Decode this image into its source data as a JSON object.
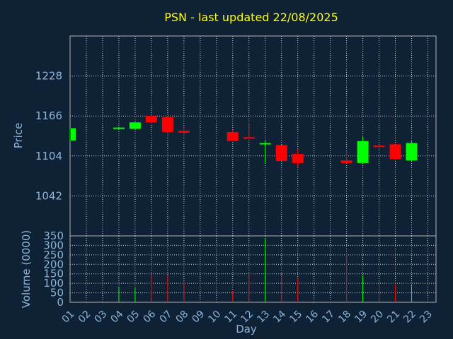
{
  "chart_data": {
    "type": "candlestick",
    "title": "PSN - last updated 22/08/2025",
    "xlabel": "Day",
    "price_ylabel": "Price",
    "volume_ylabel": "Volume (0000)",
    "x_ticks": [
      "01",
      "02",
      "03",
      "04",
      "05",
      "06",
      "07",
      "08",
      "09",
      "10",
      "11",
      "12",
      "13",
      "14",
      "15",
      "16",
      "17",
      "18",
      "19",
      "20",
      "21",
      "22",
      "23"
    ],
    "price_ticks": [
      1042,
      1104,
      1166,
      1228
    ],
    "price_ylim": [
      980,
      1290
    ],
    "volume_ticks": [
      0,
      50,
      100,
      150,
      200,
      250,
      300,
      350
    ],
    "volume_ylim": [
      0,
      350
    ],
    "grid": true,
    "colors": {
      "background": "#0f2135",
      "title": "#ffff00",
      "labels": "#8cb4d8",
      "up": "#00ff00",
      "down": "#ff0000",
      "axis": "#b4b4b4",
      "grid": "#cccccc"
    },
    "candles": [
      {
        "day": 1,
        "open": 1128,
        "high": 1147,
        "low": 1128,
        "close": 1147
      },
      {
        "day": 4,
        "open": 1147,
        "high": 1148,
        "low": 1145,
        "close": 1148
      },
      {
        "day": 5,
        "open": 1146,
        "high": 1157,
        "low": 1144,
        "close": 1156
      },
      {
        "day": 6,
        "open": 1166,
        "high": 1166,
        "low": 1154,
        "close": 1156
      },
      {
        "day": 7,
        "open": 1164,
        "high": 1164,
        "low": 1140,
        "close": 1141
      },
      {
        "day": 8,
        "open": 1143,
        "high": 1150,
        "low": 1138,
        "close": 1140
      },
      {
        "day": 11,
        "open": 1141,
        "high": 1144,
        "low": 1127,
        "close": 1127
      },
      {
        "day": 12,
        "open": 1133,
        "high": 1155,
        "low": 1132,
        "close": 1132
      },
      {
        "day": 13,
        "open": 1122,
        "high": 1128,
        "low": 1093,
        "close": 1124
      },
      {
        "day": 14,
        "open": 1121,
        "high": 1121,
        "low": 1096,
        "close": 1096
      },
      {
        "day": 15,
        "open": 1107,
        "high": 1115,
        "low": 1087,
        "close": 1093
      },
      {
        "day": 18,
        "open": 1097,
        "high": 1112,
        "low": 1092,
        "close": 1093
      },
      {
        "day": 19,
        "open": 1093,
        "high": 1134,
        "low": 1093,
        "close": 1127
      },
      {
        "day": 20,
        "open": 1120,
        "high": 1122,
        "low": 1114,
        "close": 1118
      },
      {
        "day": 21,
        "open": 1122,
        "high": 1122,
        "low": 1098,
        "close": 1099
      },
      {
        "day": 22,
        "open": 1097,
        "high": 1127,
        "low": 1096,
        "close": 1124
      }
    ],
    "volume": [
      {
        "day": 4,
        "value": 80
      },
      {
        "day": 5,
        "value": 75
      },
      {
        "day": 6,
        "value": 145
      },
      {
        "day": 7,
        "value": 145
      },
      {
        "day": 8,
        "value": 110
      },
      {
        "day": 11,
        "value": 60
      },
      {
        "day": 12,
        "value": 150
      },
      {
        "day": 13,
        "value": 340
      },
      {
        "day": 14,
        "value": 145
      },
      {
        "day": 15,
        "value": 125
      },
      {
        "day": 18,
        "value": 260
      },
      {
        "day": 19,
        "value": 140
      },
      {
        "day": 20,
        "value": 100
      },
      {
        "day": 21,
        "value": 95
      },
      {
        "day": 22,
        "value": 95
      }
    ]
  }
}
